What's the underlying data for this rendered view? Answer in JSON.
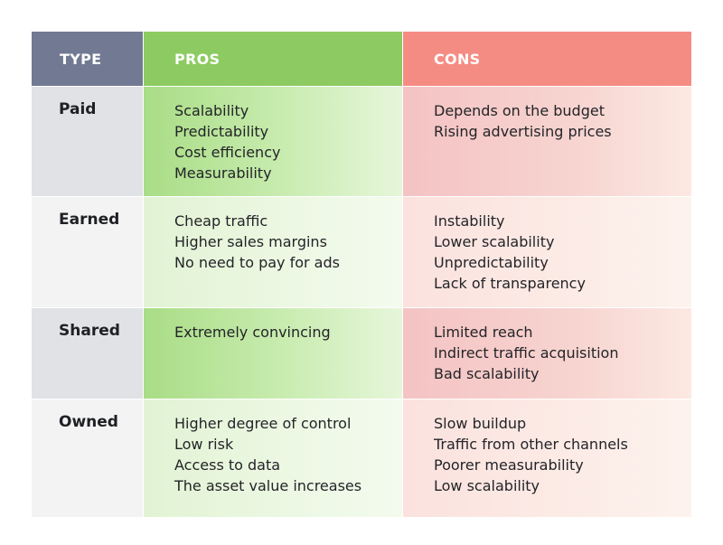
{
  "header": {
    "type": "TYPE",
    "pros": "PROS",
    "cons": "CONS"
  },
  "rows": [
    {
      "type": "Paid",
      "pros": [
        "Scalability",
        "Predictability",
        "Cost efficiency",
        "Measurability"
      ],
      "cons": [
        "Depends on the budget",
        "Rising advertising prices"
      ]
    },
    {
      "type": "Earned",
      "pros": [
        "Cheap traffic",
        "Higher sales margins",
        "No need to pay for ads"
      ],
      "cons": [
        "Instability",
        "Lower scalability",
        "Unpredictability",
        "Lack of transparency"
      ]
    },
    {
      "type": "Shared",
      "pros": [
        "Extremely convincing"
      ],
      "cons": [
        "Limited reach",
        "Indirect traffic acquisition",
        "Bad scalability"
      ]
    },
    {
      "type": "Owned",
      "pros": [
        "Higher degree of control",
        "Low risk",
        "Access to data",
        "The asset value increases"
      ],
      "cons": [
        "Slow buildup",
        "Traffic from other channels",
        "Poorer measurability",
        "Low scalability"
      ]
    }
  ],
  "colors": {
    "type_header": "#717a92",
    "pros_header": "#8dcb62",
    "cons_header": "#f58c84"
  }
}
